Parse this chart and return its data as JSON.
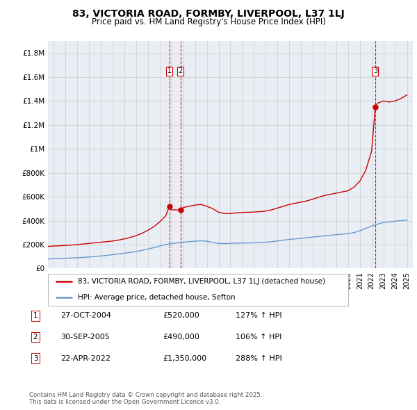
{
  "title": "83, VICTORIA ROAD, FORMBY, LIVERPOOL, L37 1LJ",
  "subtitle": "Price paid vs. HM Land Registry's House Price Index (HPI)",
  "legend_line1": "83, VICTORIA ROAD, FORMBY, LIVERPOOL, L37 1LJ (detached house)",
  "legend_line2": "HPI: Average price, detached house, Sefton",
  "footer": "Contains HM Land Registry data © Crown copyright and database right 2025.\nThis data is licensed under the Open Government Licence v3.0.",
  "sales": [
    {
      "num": 1,
      "date": "27-OCT-2004",
      "price": "£520,000",
      "hpi": "127% ↑ HPI",
      "x": 2004.82
    },
    {
      "num": 2,
      "date": "30-SEP-2005",
      "price": "£490,000",
      "hpi": "106% ↑ HPI",
      "x": 2005.75
    },
    {
      "num": 3,
      "date": "22-APR-2022",
      "price": "£1,350,000",
      "hpi": "288% ↑ HPI",
      "x": 2022.31
    }
  ],
  "red_line_color": "#cc0000",
  "blue_line_color": "#6699cc",
  "sale_marker_color": "#cc0000",
  "dashed_line_color": "#cc0000",
  "grid_color": "#cccccc",
  "background_color": "#ffffff",
  "plot_bg_color": "#e8eef4",
  "ylim": [
    0,
    1900000
  ],
  "xlim": [
    1994.5,
    2025.5
  ],
  "yticks": [
    0,
    200000,
    400000,
    600000,
    800000,
    1000000,
    1200000,
    1400000,
    1600000,
    1800000
  ],
  "ytick_labels": [
    "£0",
    "£200K",
    "£400K",
    "£600K",
    "£800K",
    "£1M",
    "£1.2M",
    "£1.4M",
    "£1.6M",
    "£1.8M"
  ],
  "xticks": [
    1995,
    1996,
    1997,
    1998,
    1999,
    2000,
    2001,
    2002,
    2003,
    2004,
    2005,
    2006,
    2007,
    2008,
    2009,
    2010,
    2011,
    2012,
    2013,
    2014,
    2015,
    2016,
    2017,
    2018,
    2019,
    2020,
    2021,
    2022,
    2023,
    2024,
    2025
  ],
  "red_x": [
    1994.5,
    1995.0,
    1995.5,
    1996.0,
    1996.5,
    1997.0,
    1997.5,
    1998.0,
    1998.5,
    1999.0,
    1999.5,
    2000.0,
    2000.5,
    2001.0,
    2001.5,
    2002.0,
    2002.5,
    2003.0,
    2003.5,
    2004.0,
    2004.5,
    2004.82,
    2005.0,
    2005.75,
    2006.0,
    2006.5,
    2007.0,
    2007.5,
    2008.0,
    2008.5,
    2009.0,
    2009.5,
    2010.0,
    2010.5,
    2011.0,
    2011.5,
    2012.0,
    2012.5,
    2013.0,
    2013.5,
    2014.0,
    2014.5,
    2015.0,
    2015.5,
    2016.0,
    2016.5,
    2017.0,
    2017.5,
    2018.0,
    2018.5,
    2019.0,
    2019.5,
    2020.0,
    2020.5,
    2021.0,
    2021.5,
    2022.0,
    2022.31,
    2022.5,
    2023.0,
    2023.5,
    2024.0,
    2024.5,
    2025.0
  ],
  "red_y": [
    185000,
    188000,
    190000,
    193000,
    196000,
    200000,
    205000,
    210000,
    215000,
    220000,
    225000,
    230000,
    238000,
    248000,
    260000,
    275000,
    295000,
    320000,
    350000,
    390000,
    440000,
    520000,
    490000,
    490000,
    510000,
    520000,
    530000,
    535000,
    520000,
    500000,
    470000,
    460000,
    460000,
    465000,
    468000,
    470000,
    472000,
    475000,
    480000,
    490000,
    505000,
    520000,
    535000,
    545000,
    555000,
    565000,
    580000,
    595000,
    610000,
    620000,
    630000,
    640000,
    650000,
    680000,
    730000,
    820000,
    980000,
    1350000,
    1380000,
    1400000,
    1390000,
    1400000,
    1420000,
    1450000
  ],
  "blue_x": [
    1994.5,
    1995.0,
    1995.5,
    1996.0,
    1996.5,
    1997.0,
    1997.5,
    1998.0,
    1998.5,
    1999.0,
    1999.5,
    2000.0,
    2000.5,
    2001.0,
    2001.5,
    2002.0,
    2002.5,
    2003.0,
    2003.5,
    2004.0,
    2004.5,
    2005.0,
    2005.5,
    2006.0,
    2006.5,
    2007.0,
    2007.5,
    2008.0,
    2008.5,
    2009.0,
    2009.5,
    2010.0,
    2010.5,
    2011.0,
    2011.5,
    2012.0,
    2012.5,
    2013.0,
    2013.5,
    2014.0,
    2014.5,
    2015.0,
    2015.5,
    2016.0,
    2016.5,
    2017.0,
    2017.5,
    2018.0,
    2018.5,
    2019.0,
    2019.5,
    2020.0,
    2020.5,
    2021.0,
    2021.5,
    2022.0,
    2022.5,
    2023.0,
    2023.5,
    2024.0,
    2024.5,
    2025.0
  ],
  "blue_y": [
    80000,
    82000,
    84000,
    86000,
    88000,
    90000,
    93000,
    97000,
    101000,
    105000,
    110000,
    116000,
    122000,
    128000,
    135000,
    143000,
    152000,
    163000,
    175000,
    188000,
    200000,
    208000,
    215000,
    220000,
    225000,
    228000,
    232000,
    228000,
    218000,
    210000,
    208000,
    210000,
    212000,
    213000,
    214000,
    215000,
    217000,
    220000,
    224000,
    230000,
    237000,
    243000,
    248000,
    253000,
    258000,
    263000,
    268000,
    273000,
    278000,
    283000,
    287000,
    292000,
    300000,
    315000,
    335000,
    355000,
    370000,
    385000,
    390000,
    395000,
    400000,
    405000
  ]
}
